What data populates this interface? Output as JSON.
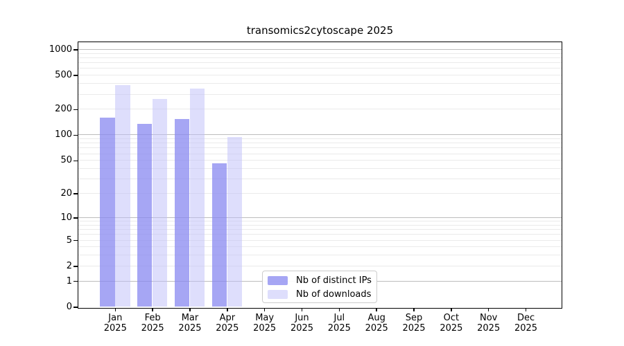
{
  "chart_data": {
    "type": "bar",
    "title": "transomics2cytoscape 2025",
    "y_scale": "log1p",
    "y_ticks": [
      "0",
      "1",
      "2",
      "5",
      "10",
      "20",
      "50",
      "100",
      "200",
      "500",
      "1000"
    ],
    "y_tick_values": [
      0,
      1,
      2,
      5,
      10,
      20,
      50,
      100,
      200,
      500,
      1000
    ],
    "ylim": [
      0,
      1250
    ],
    "grid": "horizontal; major gridlines at 1,10,100,1000; minor at 2-9 multiples of each decade",
    "categories": [
      "Jan",
      "Feb",
      "Mar",
      "Apr",
      "May",
      "Jun",
      "Jul",
      "Aug",
      "Sep",
      "Oct",
      "Nov",
      "Dec"
    ],
    "x_tick_year": "2025",
    "series": [
      {
        "name": "Nb of distinct IPs",
        "color": "rgba(136,136,240,0.75)",
        "values": [
          160,
          135,
          154,
          46,
          0,
          0,
          0,
          0,
          0,
          0,
          0,
          0
        ]
      },
      {
        "name": "Nb of downloads",
        "color": "rgba(190,190,249,0.5)",
        "values": [
          385,
          266,
          347,
          95,
          0,
          0,
          0,
          0,
          0,
          0,
          0,
          0
        ]
      }
    ],
    "legend_position": "lower center"
  },
  "colors": {
    "background": "#ffffff",
    "spine": "#000000",
    "major_grid": "#bdbdbd",
    "minor_grid": "#eaeaea",
    "tick_text": "#000000",
    "legend_border": "#cccccc"
  }
}
